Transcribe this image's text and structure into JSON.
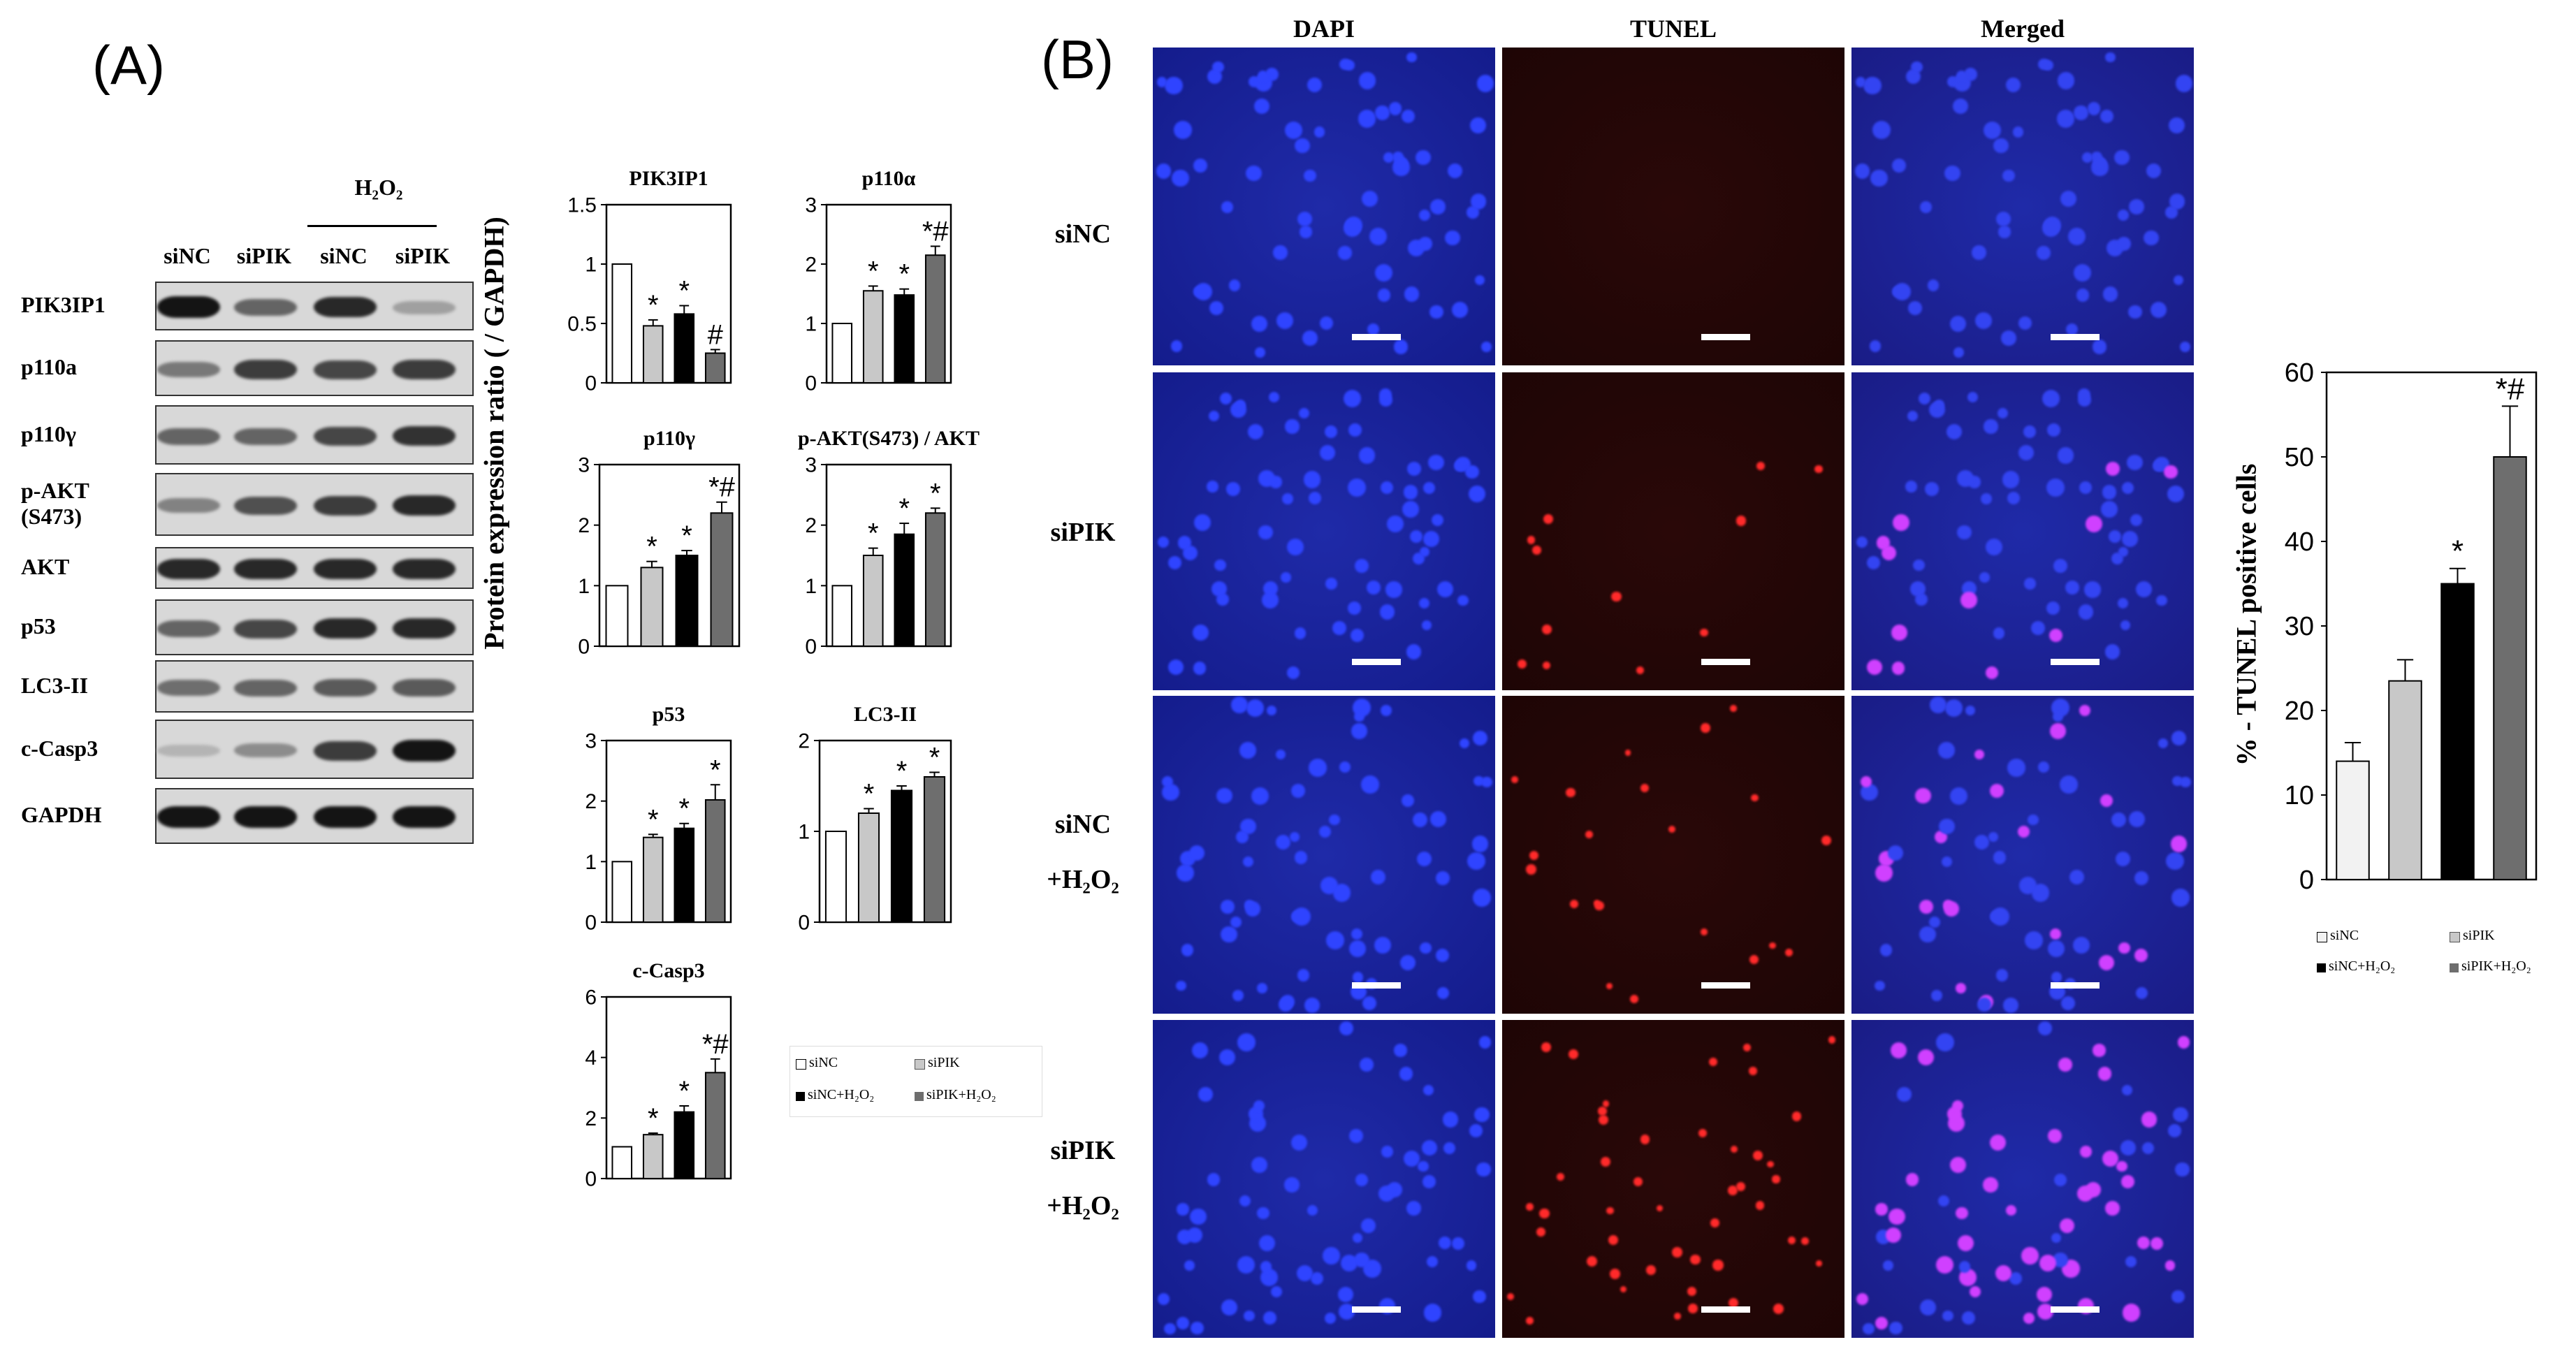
{
  "panel_a": {
    "label": "(A)",
    "h2o2_label": "H₂O₂",
    "lanes": [
      "siNC",
      "siPIK",
      "siNC",
      "siPIK"
    ],
    "blot_rows": [
      {
        "label": "PIK3IP1",
        "intensity": [
          0.95,
          0.55,
          0.85,
          0.25
        ]
      },
      {
        "label": "p110a",
        "intensity": [
          0.45,
          0.75,
          0.7,
          0.75
        ]
      },
      {
        "label": "p110γ",
        "intensity": [
          0.55,
          0.55,
          0.7,
          0.8
        ]
      },
      {
        "label": "p-AKT\n(S473)",
        "intensity": [
          0.4,
          0.65,
          0.75,
          0.85
        ]
      },
      {
        "label": "AKT",
        "intensity": [
          0.85,
          0.85,
          0.85,
          0.85
        ]
      },
      {
        "label": "p53",
        "intensity": [
          0.55,
          0.7,
          0.85,
          0.85
        ]
      },
      {
        "label": "LC3-II",
        "intensity": [
          0.5,
          0.55,
          0.6,
          0.6
        ]
      },
      {
        "label": "c-Casp3",
        "intensity": [
          0.15,
          0.35,
          0.75,
          0.95
        ]
      },
      {
        "label": "GAPDH",
        "intensity": [
          0.95,
          0.95,
          0.95,
          0.95
        ]
      }
    ],
    "ylabel": "Protein expression ratio ( / GAPDH)",
    "legend": [
      "siNC",
      "siPIK",
      "siNC+H₂O₂",
      "siPIK+H₂O₂"
    ]
  },
  "panel_b": {
    "label": "(B)",
    "columns": [
      "DAPI",
      "TUNEL",
      "Merged"
    ],
    "rows": [
      {
        "label_line1": "siNC",
        "label_line2": "",
        "tunel_density": 0.02
      },
      {
        "label_line1": "siPIK",
        "label_line2": "",
        "tunel_density": 0.15
      },
      {
        "label_line1": "siNC",
        "label_line2": "+H₂O₂",
        "tunel_density": 0.35
      },
      {
        "label_line1": "siPIK",
        "label_line2": "+H₂O₂",
        "tunel_density": 0.5
      }
    ],
    "ylabel": "% - TUNEL positive cells",
    "legend": [
      "siNC",
      "siPIK",
      "siNC+H₂O₂",
      "siPIK+H₂O₂"
    ]
  },
  "colors": {
    "bar_sinc": "#ffffff",
    "bar_sipik": "#c8c8c8",
    "bar_sinc_h2o2": "#000000",
    "bar_sipik_h2o2": "#6e6e6e",
    "dapi_bg": "#141c8c",
    "tunel_bg": "#1e0505",
    "merged_bg": "#1a1c86"
  },
  "chart_data": [
    {
      "type": "bar",
      "title": "PIK3IP1",
      "categories": [
        "siNC",
        "siPIK",
        "siNC+H₂O₂",
        "siPIK+H₂O₂"
      ],
      "values": [
        1.0,
        0.48,
        0.58,
        0.25
      ],
      "errors": [
        0,
        0.05,
        0.07,
        0.03
      ],
      "marks": [
        "",
        "*",
        "*",
        "#"
      ],
      "ylim": [
        0,
        1.5
      ],
      "yticks": [
        "0",
        "0.5",
        "1",
        "1.5"
      ],
      "ytick_values": [
        0,
        0.5,
        1,
        1.5
      ]
    },
    {
      "type": "bar",
      "title": "p110α",
      "categories": [
        "siNC",
        "siPIK",
        "siNC+H₂O₂",
        "siPIK+H₂O₂"
      ],
      "values": [
        1.0,
        1.55,
        1.48,
        2.15
      ],
      "errors": [
        0,
        0.08,
        0.1,
        0.15
      ],
      "marks": [
        "",
        "*",
        "*",
        "*#"
      ],
      "ylim": [
        0,
        3
      ],
      "yticks": [
        "0",
        "1",
        "2",
        "3"
      ],
      "ytick_values": [
        0,
        1,
        2,
        3
      ]
    },
    {
      "type": "bar",
      "title": "p110γ",
      "categories": [
        "siNC",
        "siPIK",
        "siNC+H₂O₂",
        "siPIK+H₂O₂"
      ],
      "values": [
        1.0,
        1.3,
        1.5,
        2.2
      ],
      "errors": [
        0,
        0.1,
        0.08,
        0.18
      ],
      "marks": [
        "",
        "*",
        "*",
        "*#"
      ],
      "ylim": [
        0,
        3
      ],
      "yticks": [
        "0",
        "1",
        "2",
        "3"
      ],
      "ytick_values": [
        0,
        1,
        2,
        3
      ]
    },
    {
      "type": "bar",
      "title": "p-AKT(S473) / AKT",
      "categories": [
        "siNC",
        "siPIK",
        "siNC+H₂O₂",
        "siPIK+H₂O₂"
      ],
      "values": [
        1.0,
        1.5,
        1.85,
        2.2
      ],
      "errors": [
        0,
        0.12,
        0.18,
        0.08
      ],
      "marks": [
        "",
        "*",
        "*",
        "*"
      ],
      "ylim": [
        0,
        3
      ],
      "yticks": [
        "0",
        "1",
        "2",
        "3"
      ],
      "ytick_values": [
        0,
        1,
        2,
        3
      ]
    },
    {
      "type": "bar",
      "title": "p53",
      "categories": [
        "siNC",
        "siPIK",
        "siNC+H₂O₂",
        "siPIK+H₂O₂"
      ],
      "values": [
        1.0,
        1.4,
        1.55,
        2.02
      ],
      "errors": [
        0,
        0.05,
        0.08,
        0.25
      ],
      "marks": [
        "",
        "*",
        "*",
        "*"
      ],
      "ylim": [
        0,
        3
      ],
      "yticks": [
        "0",
        "1",
        "2",
        "3"
      ],
      "ytick_values": [
        0,
        1,
        2,
        3
      ]
    },
    {
      "type": "bar",
      "title": "LC3-II",
      "categories": [
        "siNC",
        "siPIK",
        "siNC+H₂O₂",
        "siPIK+H₂O₂"
      ],
      "values": [
        1.0,
        1.2,
        1.45,
        1.6
      ],
      "errors": [
        0,
        0.05,
        0.05,
        0.05
      ],
      "marks": [
        "",
        "*",
        "*",
        "*"
      ],
      "ylim": [
        0,
        2
      ],
      "yticks": [
        "0",
        "1",
        "2"
      ],
      "ytick_values": [
        0,
        1,
        2
      ]
    },
    {
      "type": "bar",
      "title": "c-Casp3",
      "categories": [
        "siNC",
        "siPIK",
        "siNC+H₂O₂",
        "siPIK+H₂O₂"
      ],
      "values": [
        1.05,
        1.45,
        2.2,
        3.5
      ],
      "errors": [
        0,
        0.05,
        0.2,
        0.45
      ],
      "marks": [
        "",
        "*",
        "*",
        "*#"
      ],
      "ylim": [
        0,
        6
      ],
      "yticks": [
        "0",
        "2",
        "4",
        "6"
      ],
      "ytick_values": [
        0,
        2,
        4,
        6
      ]
    },
    {
      "type": "bar",
      "title": "",
      "categories": [
        "siNC",
        "siPIK",
        "siNC+H₂O₂",
        "siPIK+H₂O₂"
      ],
      "values": [
        14,
        23.5,
        35,
        50
      ],
      "errors": [
        2.2,
        2.5,
        1.8,
        6
      ],
      "marks": [
        "",
        "",
        "*",
        "*#"
      ],
      "ylabel": "% - TUNEL positive cells",
      "ylim": [
        0,
        60
      ],
      "yticks": [
        "0",
        "10",
        "20",
        "30",
        "40",
        "50",
        "60"
      ],
      "ytick_values": [
        0,
        10,
        20,
        30,
        40,
        50,
        60
      ]
    }
  ]
}
